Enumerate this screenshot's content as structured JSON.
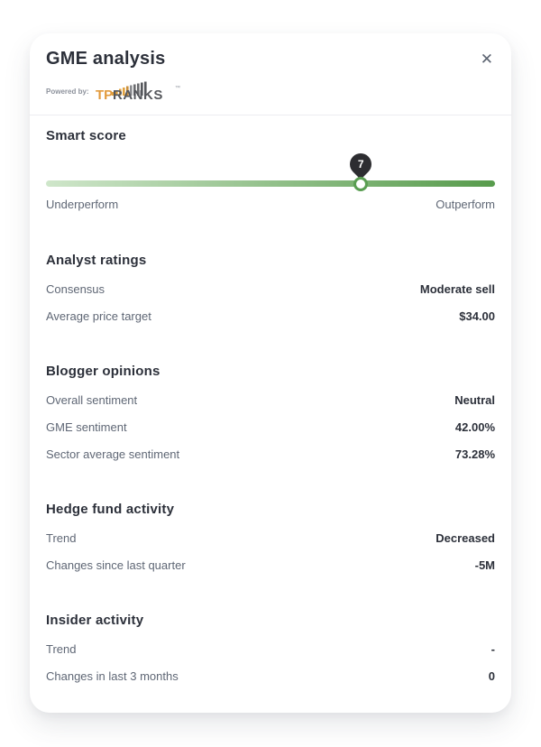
{
  "modal": {
    "title": "GME analysis",
    "close_icon": "✕",
    "powered_by_label": "Powered by:",
    "brand": {
      "part1": "TP",
      "part2": "RANKS",
      "trademark": "™"
    }
  },
  "colors": {
    "track_start": "#cfe6ca",
    "track_end": "#579b4c",
    "knob_border": "#5a9e52",
    "pin_background": "#2d2d31",
    "brand_orange": "#e29a3c",
    "brand_dark": "#55575c",
    "heading_text": "#2c303a",
    "muted_text": "#5f6775"
  },
  "smart_score": {
    "heading": "Smart score",
    "score": "7",
    "position_percent": 70,
    "left_label": "Underperform",
    "right_label": "Outperform"
  },
  "sections": [
    {
      "heading": "Analyst ratings",
      "rows": [
        {
          "label": "Consensus",
          "value": "Moderate sell"
        },
        {
          "label": "Average price target",
          "value": "$34.00"
        }
      ]
    },
    {
      "heading": "Blogger opinions",
      "rows": [
        {
          "label": "Overall sentiment",
          "value": "Neutral"
        },
        {
          "label": "GME sentiment",
          "value": "42.00%"
        },
        {
          "label": "Sector average sentiment",
          "value": "73.28%"
        }
      ]
    },
    {
      "heading": "Hedge fund activity",
      "rows": [
        {
          "label": "Trend",
          "value": "Decreased"
        },
        {
          "label": "Changes since last quarter",
          "value": "-5M"
        }
      ]
    },
    {
      "heading": "Insider activity",
      "rows": [
        {
          "label": "Trend",
          "value": "-"
        },
        {
          "label": "Changes in last 3 months",
          "value": "0"
        }
      ]
    }
  ]
}
